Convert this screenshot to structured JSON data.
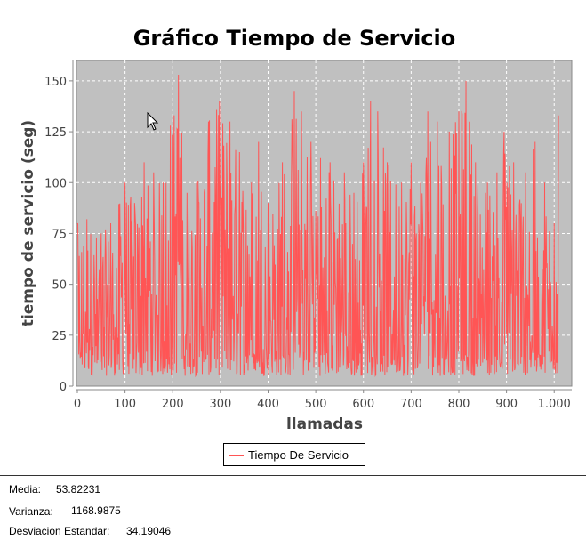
{
  "chart_data": {
    "type": "line",
    "title": "Gráfico Tiempo de Servicio",
    "xlabel": "llamadas",
    "ylabel": "tiempo de servicio (seg)",
    "xlim": [
      0,
      1035
    ],
    "ylim": [
      0,
      160
    ],
    "x_ticks": [
      "0",
      "100",
      "200",
      "300",
      "400",
      "500",
      "600",
      "700",
      "800",
      "900",
      "1.000"
    ],
    "x_tick_values": [
      0,
      100,
      200,
      300,
      400,
      500,
      600,
      700,
      800,
      900,
      1000
    ],
    "y_ticks": [
      "0",
      "25",
      "50",
      "75",
      "100",
      "125",
      "150"
    ],
    "y_tick_values": [
      0,
      25,
      50,
      75,
      100,
      125,
      150
    ],
    "grid": true,
    "legend_position": "bottom-center",
    "series": [
      {
        "name": "Tiempo De Servicio",
        "color": "#ff5555",
        "n_points": 1010,
        "envelope_peaks": [
          {
            "x": 0,
            "y": 80
          },
          {
            "x": 20,
            "y": 82
          },
          {
            "x": 50,
            "y": 75
          },
          {
            "x": 70,
            "y": 80
          },
          {
            "x": 100,
            "y": 100
          },
          {
            "x": 120,
            "y": 90
          },
          {
            "x": 140,
            "y": 110
          },
          {
            "x": 160,
            "y": 105
          },
          {
            "x": 180,
            "y": 100
          },
          {
            "x": 195,
            "y": 128
          },
          {
            "x": 212,
            "y": 153
          },
          {
            "x": 230,
            "y": 95
          },
          {
            "x": 250,
            "y": 100
          },
          {
            "x": 275,
            "y": 130
          },
          {
            "x": 298,
            "y": 140
          },
          {
            "x": 320,
            "y": 130
          },
          {
            "x": 340,
            "y": 115
          },
          {
            "x": 365,
            "y": 100
          },
          {
            "x": 380,
            "y": 120
          },
          {
            "x": 400,
            "y": 90
          },
          {
            "x": 430,
            "y": 110
          },
          {
            "x": 455,
            "y": 145
          },
          {
            "x": 470,
            "y": 135
          },
          {
            "x": 490,
            "y": 120
          },
          {
            "x": 510,
            "y": 112
          },
          {
            "x": 530,
            "y": 110
          },
          {
            "x": 560,
            "y": 105
          },
          {
            "x": 580,
            "y": 95
          },
          {
            "x": 600,
            "y": 110
          },
          {
            "x": 615,
            "y": 140
          },
          {
            "x": 630,
            "y": 135
          },
          {
            "x": 650,
            "y": 110
          },
          {
            "x": 680,
            "y": 100
          },
          {
            "x": 700,
            "y": 110
          },
          {
            "x": 720,
            "y": 100
          },
          {
            "x": 735,
            "y": 135
          },
          {
            "x": 755,
            "y": 130
          },
          {
            "x": 780,
            "y": 125
          },
          {
            "x": 800,
            "y": 135
          },
          {
            "x": 815,
            "y": 150
          },
          {
            "x": 835,
            "y": 110
          },
          {
            "x": 860,
            "y": 100
          },
          {
            "x": 880,
            "y": 105
          },
          {
            "x": 895,
            "y": 125
          },
          {
            "x": 915,
            "y": 110
          },
          {
            "x": 940,
            "y": 105
          },
          {
            "x": 960,
            "y": 120
          },
          {
            "x": 980,
            "y": 100
          },
          {
            "x": 1000,
            "y": 80
          },
          {
            "x": 1015,
            "y": 133
          }
        ],
        "min_value": 5,
        "max_value": 153
      }
    ]
  },
  "stats": {
    "media_label": "Media:",
    "media_value": "53.82231",
    "varianza_label": "Varianza:",
    "varianza_value": "1168.9875",
    "desviacion_label": "Desviacion Estandar:",
    "desviacion_value": "34.19046"
  },
  "colors": {
    "plot_background": "#c0c0c0",
    "series": "#ff5555",
    "grid": "#ffffff"
  }
}
